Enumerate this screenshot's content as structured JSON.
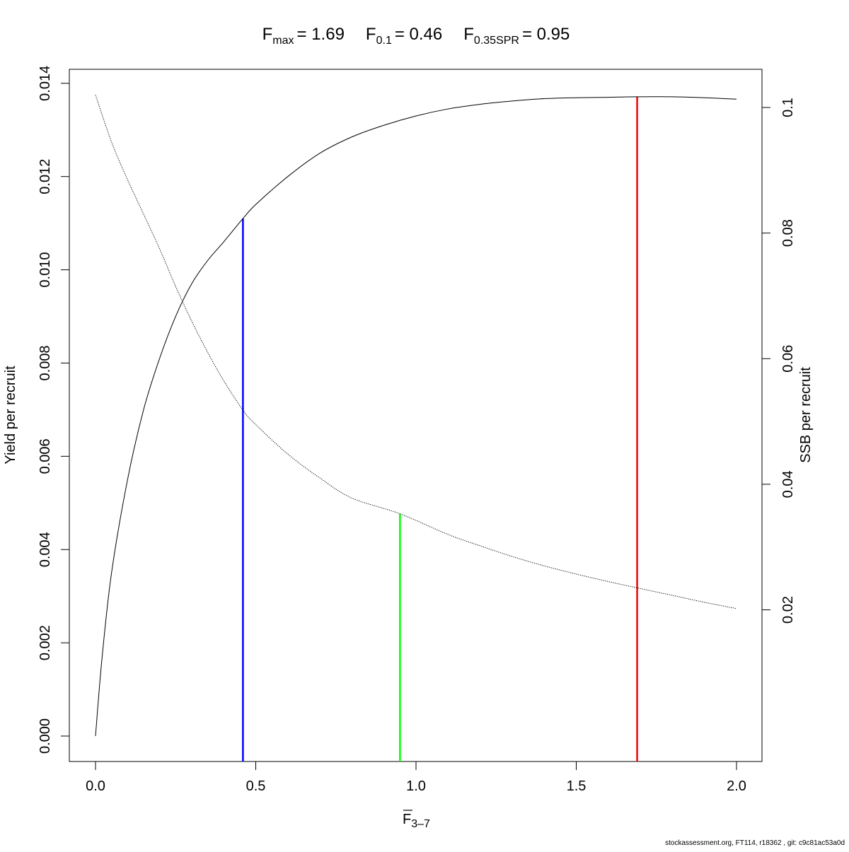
{
  "title": {
    "fmax_symbol": "F",
    "fmax_sub": "max",
    "fmax_value": "= 1.69",
    "f01_symbol": "F",
    "f01_sub": "0.1",
    "f01_value": "= 0.46",
    "fspr_symbol": "F",
    "fspr_sub": "0.35SPR",
    "fspr_value": "= 0.95"
  },
  "footer": "stockassessment.org, FT114, r18362 , git: c9c81ac53a0d",
  "chart_data": {
    "type": "line",
    "title": "Fmax = 1.69   F0.1 = 0.46   F0.35SPR = 0.95",
    "x_axis": {
      "symbol": "F",
      "sub": "3–7",
      "range": [
        0,
        2
      ],
      "ticks": [
        0,
        0.5,
        1,
        1.5,
        2
      ],
      "tick_labels": [
        "0.0",
        "0.5",
        "1.0",
        "1.5",
        "2.0"
      ]
    },
    "y_left": {
      "label": "Yield per recruit",
      "range": [
        0,
        0.0137
      ],
      "ticks": [
        0,
        0.002,
        0.004,
        0.006,
        0.008,
        0.01,
        0.012,
        0.014
      ],
      "tick_labels": [
        "0.000",
        "0.002",
        "0.004",
        "0.006",
        "0.008",
        "0.010",
        "0.012",
        "0.014"
      ]
    },
    "y_right": {
      "label": "SSB per recruit",
      "range": [
        0,
        0.102
      ],
      "ticks": [
        0.02,
        0.04,
        0.06,
        0.08,
        0.1
      ],
      "tick_labels": [
        "0.02",
        "0.04",
        "0.06",
        "0.08",
        "0.1"
      ]
    },
    "series": [
      {
        "name": "Yield per recruit",
        "axis": "left",
        "style": "solid",
        "color": "#000000",
        "x": [
          0,
          0.02,
          0.05,
          0.1,
          0.15,
          0.2,
          0.25,
          0.3,
          0.35,
          0.4,
          0.46,
          0.5,
          0.6,
          0.7,
          0.8,
          0.9,
          1.0,
          1.1,
          1.2,
          1.3,
          1.4,
          1.5,
          1.6,
          1.69,
          1.8,
          1.9,
          2.0
        ],
        "y": [
          0,
          0.00165,
          0.0035,
          0.0055,
          0.007,
          0.0081,
          0.009,
          0.0097,
          0.0102,
          0.0106,
          0.0111,
          0.0114,
          0.012,
          0.0125,
          0.01285,
          0.0131,
          0.0133,
          0.01345,
          0.01355,
          0.01362,
          0.01367,
          0.01369,
          0.0137,
          0.01371,
          0.01371,
          0.01369,
          0.01366
        ]
      },
      {
        "name": "SSB per recruit",
        "axis": "right",
        "style": "dotted",
        "color": "#000000",
        "x": [
          0,
          0.05,
          0.1,
          0.15,
          0.2,
          0.25,
          0.3,
          0.35,
          0.4,
          0.46,
          0.5,
          0.6,
          0.7,
          0.8,
          0.95,
          1.1,
          1.2,
          1.3,
          1.4,
          1.5,
          1.6,
          1.69,
          1.8,
          1.9,
          2.0
        ],
        "y": [
          0.102,
          0.0945,
          0.0885,
          0.083,
          0.0775,
          0.0715,
          0.066,
          0.061,
          0.0565,
          0.0518,
          0.0495,
          0.0448,
          0.041,
          0.0378,
          0.0353,
          0.032,
          0.0302,
          0.0285,
          0.027,
          0.0257,
          0.0245,
          0.0235,
          0.0223,
          0.0212,
          0.0202
        ]
      }
    ],
    "reference_lines": [
      {
        "name": "F0.1",
        "x": 0.46,
        "top_value": 0.0111,
        "top_axis": "left",
        "color": "#0000ff"
      },
      {
        "name": "F0.35SPR",
        "x": 0.95,
        "top_value": 0.0353,
        "top_axis": "right",
        "color": "#00ff00"
      },
      {
        "name": "Fmax",
        "x": 1.69,
        "top_value": 0.01371,
        "top_axis": "left",
        "color": "#ff0000"
      }
    ],
    "grid": false,
    "legend": "none"
  }
}
